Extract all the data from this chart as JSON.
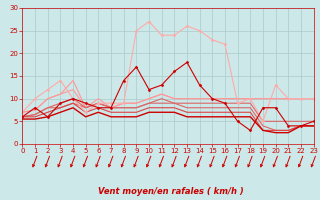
{
  "xlabel": "Vent moyen/en rafales ( km/h )",
  "xlim": [
    0,
    23
  ],
  "ylim": [
    0,
    30
  ],
  "yticks": [
    0,
    5,
    10,
    15,
    20,
    25,
    30
  ],
  "xticks": [
    0,
    1,
    2,
    3,
    4,
    5,
    6,
    7,
    8,
    9,
    10,
    11,
    12,
    13,
    14,
    15,
    16,
    17,
    18,
    19,
    20,
    21,
    22,
    23
  ],
  "bg_color": "#cce8e8",
  "grid_color": "#aacccc",
  "series": [
    {
      "y": [
        7,
        7.5,
        10,
        11,
        12,
        8,
        10,
        8,
        9,
        9,
        10,
        11,
        10,
        10,
        10,
        10,
        10,
        10,
        10,
        10,
        10,
        10,
        10,
        10
      ],
      "color": "#ff9999",
      "lw": 0.8,
      "marker": null
    },
    {
      "y": [
        7,
        7.5,
        10,
        11,
        14,
        8,
        9,
        8,
        9,
        9,
        10,
        11,
        10,
        10,
        10,
        10,
        10,
        10,
        10,
        10,
        10,
        10,
        10,
        10
      ],
      "color": "#ff9999",
      "lw": 0.8,
      "marker": null
    },
    {
      "y": [
        6,
        6.5,
        8,
        9,
        10,
        8,
        9,
        8,
        8,
        8,
        9,
        10,
        9,
        9,
        9,
        9,
        9,
        9,
        9,
        5,
        5,
        5,
        5,
        5
      ],
      "color": "#dd6666",
      "lw": 0.8,
      "marker": null
    },
    {
      "y": [
        6,
        6.5,
        8,
        8,
        9,
        8,
        9,
        8,
        8,
        8,
        9,
        9,
        9,
        8,
        8,
        8,
        8,
        8,
        8,
        4,
        3,
        3,
        4,
        4
      ],
      "color": "#dd6666",
      "lw": 0.8,
      "marker": null
    },
    {
      "y": [
        6,
        6,
        7,
        8,
        9,
        7,
        8,
        7,
        7,
        7,
        8,
        8,
        8,
        7,
        7,
        7,
        7,
        7,
        7,
        3,
        3,
        3,
        4,
        4
      ],
      "color": "#dd4444",
      "lw": 0.8,
      "marker": null
    },
    {
      "y": [
        5.5,
        5.5,
        6,
        7,
        8,
        6,
        7,
        6,
        6,
        6,
        7,
        7,
        7,
        6,
        6,
        6,
        6,
        6,
        6,
        3,
        2.5,
        2.5,
        4,
        4
      ],
      "color": "#cc0000",
      "lw": 1.0,
      "marker": null
    },
    {
      "y": [
        7,
        10,
        12,
        14,
        10,
        7,
        9,
        9,
        9,
        25,
        27,
        24,
        24,
        26,
        25,
        23,
        22,
        9,
        10,
        5,
        13,
        10,
        10,
        10
      ],
      "color": "#ffaaaa",
      "lw": 0.8,
      "marker": "D",
      "ms": 1.5
    },
    {
      "y": [
        6,
        8,
        6,
        9,
        10,
        9,
        8,
        8,
        14,
        17,
        12,
        13,
        16,
        18,
        13,
        10,
        9,
        5,
        3,
        8,
        8,
        4,
        4,
        5
      ],
      "color": "#cc0000",
      "lw": 0.8,
      "marker": "D",
      "ms": 1.5
    }
  ],
  "arrow_color": "#cc0000",
  "xlabel_fontsize": 6,
  "tick_fontsize": 5
}
